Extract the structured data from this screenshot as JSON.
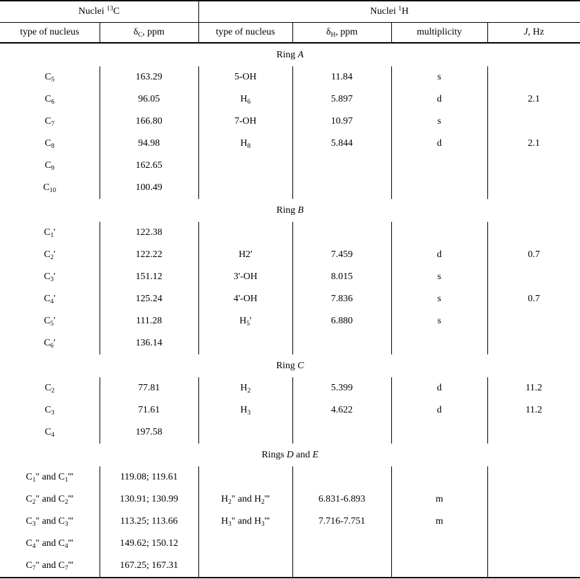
{
  "colors": {
    "background": "#ffffff",
    "text": "#000000",
    "border": "#000000"
  },
  "table": {
    "header": {
      "group_13c": "Nuclei ^13^C",
      "group_1h": "Nuclei ^1^H",
      "columns": [
        "type of nucleus",
        "δ~C~, ppm",
        "type of nucleus",
        "δ~H~, ppm",
        "multiplicity",
        "*J*, Hz"
      ]
    },
    "sections": [
      {
        "title": "Ring *A*",
        "rows": [
          [
            "C~5~",
            "163.29",
            "5-OH",
            "11.84",
            "s",
            ""
          ],
          [
            "C~6~",
            "96.05",
            "H~6~",
            "5.897",
            "d",
            "2.1"
          ],
          [
            "C~7~",
            "166.80",
            "7-OH",
            "10.97",
            "s",
            ""
          ],
          [
            "C~8~",
            "94.98",
            "H~8~",
            "5.844",
            "d",
            "2.1"
          ],
          [
            "C~9~",
            "162.65",
            "",
            "",
            "",
            ""
          ],
          [
            "C~10~",
            "100.49",
            "",
            "",
            "",
            ""
          ]
        ]
      },
      {
        "title": "Ring *B*",
        "rows": [
          [
            "C~1~'",
            "122.38",
            "",
            "",
            "",
            ""
          ],
          [
            "C~2~'",
            "122.22",
            "H2'",
            "7.459",
            "d",
            "0.7"
          ],
          [
            "C~3~'",
            "151.12",
            "3'-OH",
            "8.015",
            "s",
            ""
          ],
          [
            "C~4~'",
            "125.24",
            "4'-OH",
            "7.836",
            "s",
            "0.7"
          ],
          [
            "C~5~'",
            "111.28",
            "H~5~'",
            "6.880",
            "s",
            ""
          ],
          [
            "C~6~'",
            "136.14",
            "",
            "",
            "",
            ""
          ]
        ]
      },
      {
        "title": "Ring *C*",
        "rows": [
          [
            "C~2~",
            "77.81",
            "H~2~",
            "5.399",
            "d",
            "11.2"
          ],
          [
            "C~3~",
            "71.61",
            "H~3~",
            "4.622",
            "d",
            "11.2"
          ],
          [
            "C~4~",
            "197.58",
            "",
            "",
            "",
            ""
          ]
        ]
      },
      {
        "title": "Rings *D* and *E*",
        "rows": [
          [
            "C~1~\" and C~1~'''",
            "119.08; 119.61",
            "",
            "",
            "",
            ""
          ],
          [
            "C~2~\" and C~2~'''",
            "130.91; 130.99",
            "H~2~\" and H~2~'''",
            "6.831-6.893",
            "m",
            ""
          ],
          [
            "C~3~\" and C~3~'''",
            "113.25; 113.66",
            "H~3~\" and H~3~'''",
            "7.716-7.751",
            "m",
            ""
          ],
          [
            "C~4~\" and C~4~'''",
            "149.62; 150.12",
            "",
            "",
            "",
            ""
          ],
          [
            "C~7~\" and C~7~'''",
            "167.25; 167.31",
            "",
            "",
            "",
            ""
          ]
        ]
      }
    ]
  }
}
